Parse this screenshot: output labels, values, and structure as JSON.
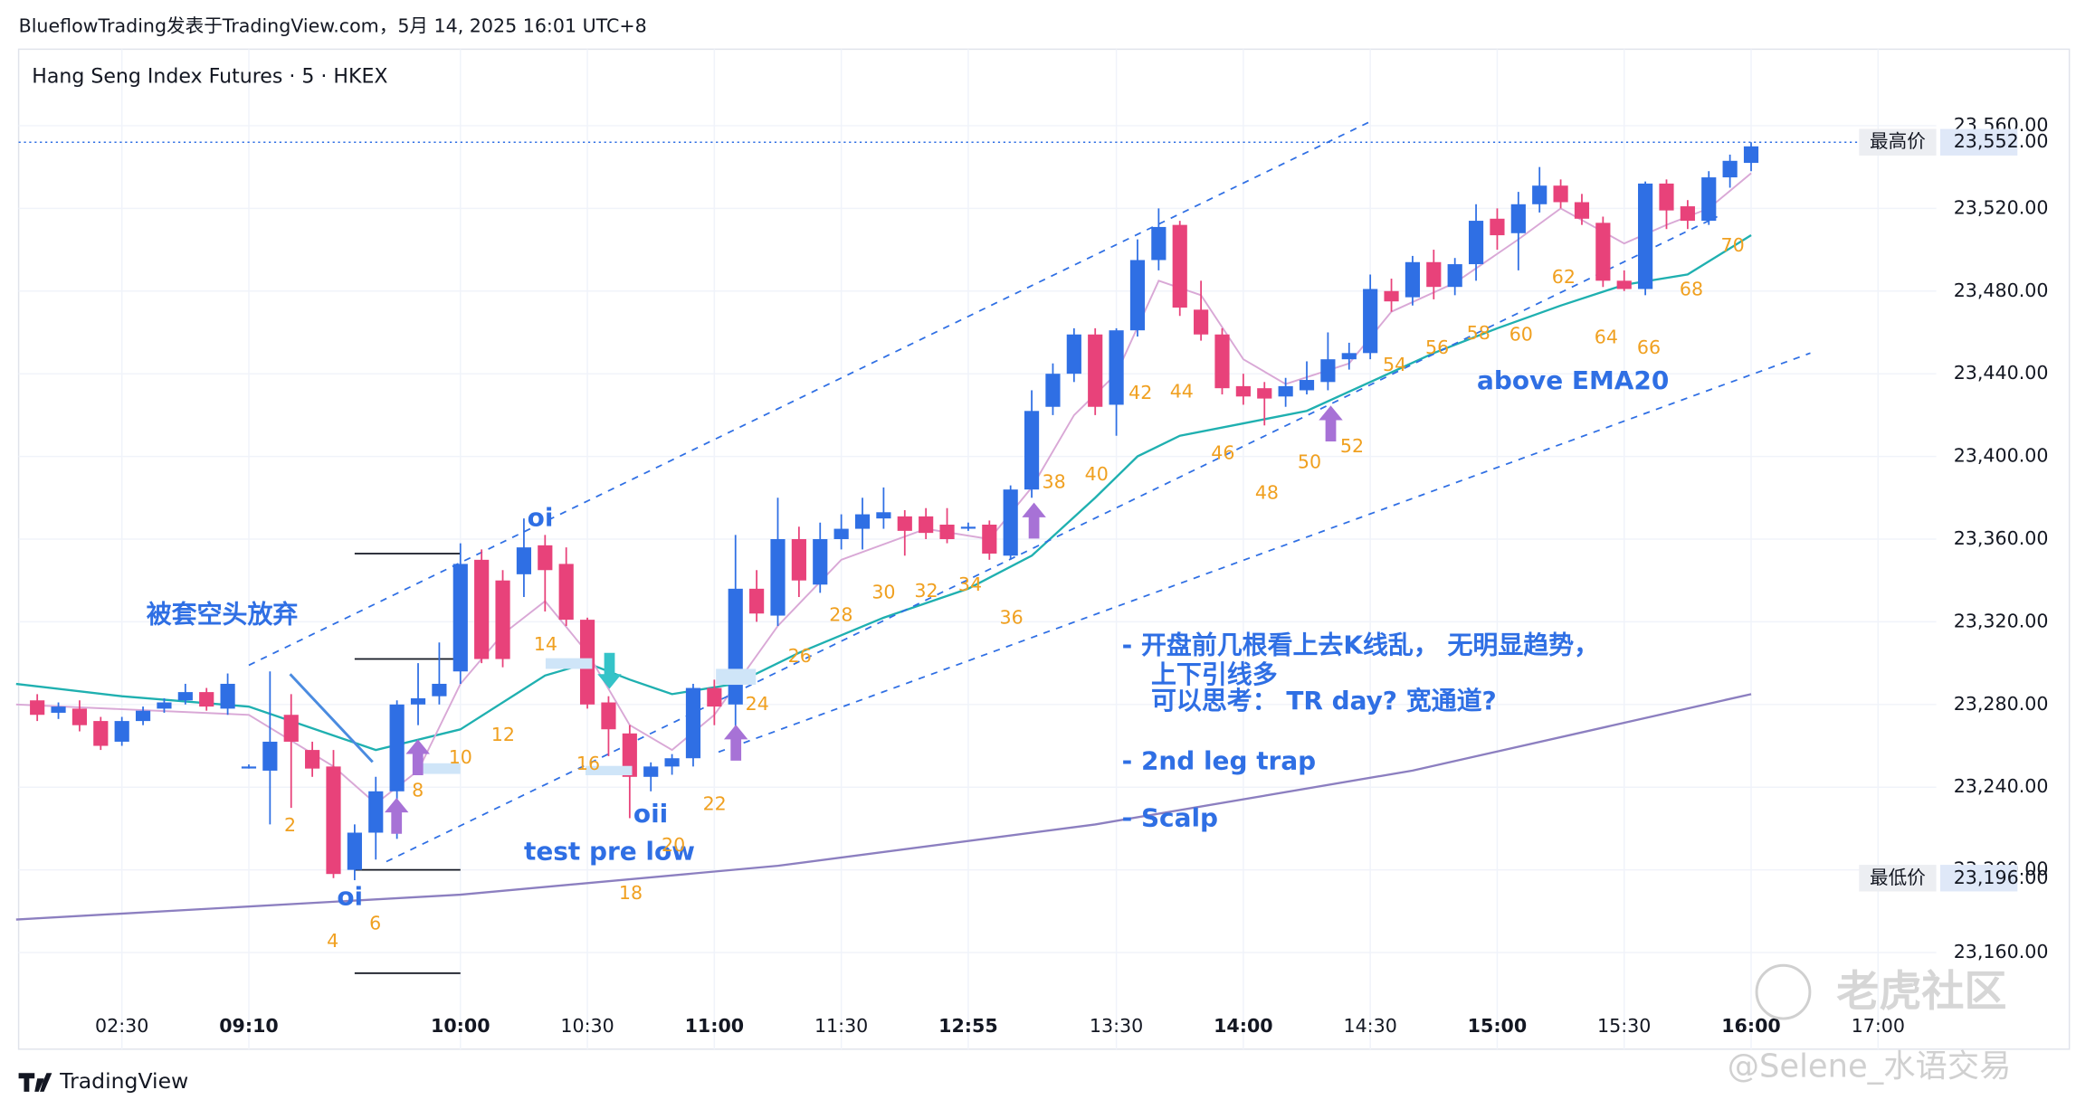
{
  "header": "BlueflowTrading发表于TradingView.com，5月 14, 2025 16:01 UTC+8",
  "chart_data": {
    "type": "candlestick",
    "title": "Hang Seng Index Futures · 5 · HKEX",
    "x": [
      0,
      1,
      2,
      3,
      4,
      5,
      6,
      7,
      8,
      9,
      10,
      11,
      12,
      13,
      14,
      15,
      16,
      17,
      18,
      19,
      20,
      21,
      22,
      23,
      24,
      25,
      26,
      27,
      28,
      29,
      30,
      31,
      32,
      33,
      34,
      35,
      36,
      37,
      38,
      39,
      40,
      41,
      42,
      43,
      44,
      45,
      46,
      47,
      48,
      49,
      50,
      51,
      52,
      53,
      54,
      55,
      56,
      57,
      58,
      59,
      60,
      61,
      62,
      63,
      64,
      65,
      66,
      67,
      68,
      69,
      70,
      71,
      72,
      73,
      74,
      75,
      76,
      77,
      78,
      79,
      80,
      81
    ],
    "open": [
      23282,
      23276,
      23278,
      23272,
      23262,
      23272,
      23278,
      23282,
      23286,
      23278,
      23250,
      23248,
      23275,
      23258,
      23250,
      23200,
      23218,
      23238,
      23280,
      23284,
      23296,
      23350,
      23340,
      23343,
      23357,
      23348,
      23321,
      23281,
      23266,
      23245,
      23250,
      23254,
      23288,
      23280,
      23336,
      23323,
      23360,
      23338,
      23360,
      23365,
      23370,
      23371,
      23371,
      23367,
      23366,
      23367,
      23352,
      23384,
      23424,
      23440,
      23459,
      23425,
      23461,
      23495,
      23512,
      23471,
      23459,
      23434,
      23433,
      23429,
      23432,
      23436,
      23447,
      23450,
      23480,
      23477,
      23494,
      23482,
      23493,
      23515,
      23508,
      23522,
      23531,
      23523,
      23513,
      23485,
      23481,
      23532,
      23521,
      23514,
      23535,
      23542
    ],
    "high": [
      23285,
      23281,
      23282,
      23274,
      23274,
      23279,
      23283,
      23290,
      23288,
      23295,
      23251,
      23296,
      23285,
      23262,
      23258,
      23222,
      23245,
      23282,
      23300,
      23310,
      23358,
      23355,
      23345,
      23370,
      23362,
      23356,
      23322,
      23284,
      23270,
      23252,
      23256,
      23290,
      23292,
      23362,
      23345,
      23380,
      23366,
      23368,
      23372,
      23380,
      23385,
      23374,
      23375,
      23375,
      23368,
      23369,
      23386,
      23432,
      23445,
      23462,
      23462,
      23462,
      23505,
      23520,
      23514,
      23485,
      23462,
      23440,
      23436,
      23438,
      23446,
      23460,
      23455,
      23488,
      23486,
      23497,
      23500,
      23496,
      23522,
      23520,
      23528,
      23540,
      23534,
      23527,
      23516,
      23490,
      23533,
      23534,
      23524,
      23538,
      23546,
      23552
    ],
    "low": [
      23272,
      23273,
      23267,
      23258,
      23260,
      23270,
      23276,
      23280,
      23277,
      23275,
      23249,
      23222,
      23230,
      23245,
      23196,
      23195,
      23205,
      23215,
      23270,
      23280,
      23290,
      23300,
      23298,
      23332,
      23325,
      23318,
      23278,
      23255,
      23225,
      23238,
      23246,
      23250,
      23270,
      23268,
      23320,
      23318,
      23332,
      23334,
      23355,
      23355,
      23365,
      23352,
      23360,
      23358,
      23364,
      23350,
      23350,
      23380,
      23420,
      23436,
      23420,
      23410,
      23458,
      23490,
      23468,
      23456,
      23430,
      23425,
      23415,
      23424,
      23430,
      23432,
      23442,
      23447,
      23470,
      23473,
      23476,
      23478,
      23485,
      23500,
      23490,
      23518,
      23520,
      23512,
      23482,
      23480,
      23478,
      23510,
      23510,
      23512,
      23530,
      23538
    ],
    "close": [
      23275,
      23279,
      23270,
      23260,
      23272,
      23277,
      23281,
      23286,
      23279,
      23290,
      23250,
      23262,
      23262,
      23249,
      23198,
      23218,
      23238,
      23280,
      23283,
      23290,
      23348,
      23302,
      23302,
      23356,
      23345,
      23321,
      23280,
      23268,
      23245,
      23250,
      23254,
      23288,
      23279,
      23336,
      23324,
      23360,
      23340,
      23360,
      23365,
      23372,
      23373,
      23364,
      23363,
      23360,
      23366,
      23353,
      23384,
      23422,
      23440,
      23459,
      23424,
      23461,
      23495,
      23511,
      23472,
      23459,
      23433,
      23429,
      23428,
      23434,
      23437,
      23447,
      23450,
      23481,
      23475,
      23494,
      23482,
      23493,
      23514,
      23507,
      23522,
      23531,
      23523,
      23515,
      23485,
      23481,
      23532,
      23519,
      23514,
      23535,
      23543,
      23550
    ],
    "up_color": "#2f6fe4",
    "down_color": "#e8427a",
    "xlim": [
      -0.88,
      89.75
    ],
    "xticks": [
      {
        "value": 4,
        "label": "02:30"
      },
      {
        "value": 10,
        "label": "09:10"
      },
      {
        "value": 20,
        "label": "10:00"
      },
      {
        "value": 26,
        "label": "10:30"
      },
      {
        "value": 32,
        "label": "11:00"
      },
      {
        "value": 38,
        "label": "11:30"
      },
      {
        "value": 44,
        "label": "12:55"
      },
      {
        "value": 51,
        "label": "13:30"
      },
      {
        "value": 57,
        "label": "14:00"
      },
      {
        "value": 63,
        "label": "14:30"
      },
      {
        "value": 69,
        "label": "15:00"
      },
      {
        "value": 75,
        "label": "15:30"
      },
      {
        "value": 81,
        "label": "16:00"
      },
      {
        "value": 87,
        "label": "17:00"
      }
    ],
    "ylim": [
      23148,
      23597
    ],
    "yticks": [
      {
        "value": 23160,
        "label": "23,160.00"
      },
      {
        "value": 23200,
        "label": "23,200.00"
      },
      {
        "value": 23240,
        "label": "23,240.00"
      },
      {
        "value": 23280,
        "label": "23,280.00"
      },
      {
        "value": 23320,
        "label": "23,320.00"
      },
      {
        "value": 23360,
        "label": "23,360.00"
      },
      {
        "value": 23400,
        "label": "23,400.00"
      },
      {
        "value": 23440,
        "label": "23,440.00"
      },
      {
        "value": 23480,
        "label": "23,480.00"
      },
      {
        "value": 23520,
        "label": "23,520.00"
      },
      {
        "value": 23560,
        "label": "23,560.00"
      }
    ],
    "grid": true,
    "high_label": {
      "name": "最高价",
      "value": 23552,
      "label": "23,552.00"
    },
    "low_label": {
      "name": "最低价",
      "value": 23196,
      "label": "23,196.00"
    },
    "lines": [
      {
        "color": "#1fb0b0",
        "width": 1.6,
        "x": [
          -1,
          4,
          10,
          16,
          20,
          24,
          26,
          28,
          30,
          33,
          36,
          40,
          44,
          47,
          50,
          52,
          54,
          57,
          60,
          63,
          66,
          69,
          72,
          75,
          78,
          81
        ],
        "values": [
          23290,
          23284,
          23279,
          23258,
          23268,
          23294,
          23300,
          23292,
          23285,
          23290,
          23305,
          23322,
          23336,
          23352,
          23380,
          23400,
          23410,
          23416,
          23422,
          23436,
          23450,
          23462,
          23473,
          23483,
          23488,
          23507
        ]
      },
      {
        "color": "#d9a8d6",
        "width": 1.3,
        "x": [
          -1,
          10,
          14,
          16,
          18,
          20,
          22,
          24,
          26,
          28,
          30,
          32,
          35,
          38,
          42,
          45,
          47,
          49,
          51,
          53,
          55,
          57,
          59,
          62,
          64,
          67,
          70,
          72,
          75,
          77,
          79,
          81
        ],
        "values": [
          23280,
          23275,
          23250,
          23232,
          23248,
          23290,
          23314,
          23330,
          23305,
          23270,
          23258,
          23275,
          23318,
          23350,
          23365,
          23360,
          23385,
          23420,
          23440,
          23485,
          23478,
          23447,
          23435,
          23445,
          23470,
          23484,
          23505,
          23520,
          23503,
          23512,
          23520,
          23537
        ]
      },
      {
        "color": "#8c7fc0",
        "width": 1.6,
        "x": [
          -1,
          20,
          35,
          50,
          65,
          81
        ],
        "values": [
          23176,
          23188,
          23202,
          23222,
          23248,
          23285
        ]
      }
    ],
    "trendlines": [
      {
        "x": [
          10,
          63
        ],
        "values": [
          23299,
          23562
        ]
      },
      {
        "x": [
          16.5,
          79.4
        ],
        "values": [
          23204,
          23516
        ]
      },
      {
        "x": [
          32.2,
          83.8
        ],
        "values": [
          23257,
          23450
        ]
      }
    ],
    "levels": [
      {
        "x": [
          15,
          20
        ],
        "value": 23353
      },
      {
        "x": [
          15,
          20
        ],
        "value": 23302
      },
      {
        "x": [
          15,
          20
        ],
        "value": 23200
      },
      {
        "x": [
          15,
          20
        ],
        "value": 23150
      }
    ],
    "bar_numbers": [
      2,
      4,
      6,
      8,
      10,
      12,
      14,
      16,
      18,
      20,
      22,
      24,
      26,
      28,
      30,
      32,
      34,
      36,
      38,
      40,
      42,
      44,
      46,
      48,
      50,
      52,
      54,
      56,
      58,
      60,
      62,
      64,
      66,
      68,
      70
    ],
    "annotations": [
      "被套空头放弃",
      "oi",
      "oi",
      "oii",
      "test pre low",
      "above EMA20",
      "- 开盘前几根看上去K线乱， 无明显趋势，",
      "上下引线多",
      "可以思考： TR day? 宽通道?",
      "- 2nd leg trap",
      "- Scalp"
    ]
  },
  "footer": "TradingView",
  "watermarks": [
    "老虎社区",
    "@Selene_水语交易"
  ]
}
